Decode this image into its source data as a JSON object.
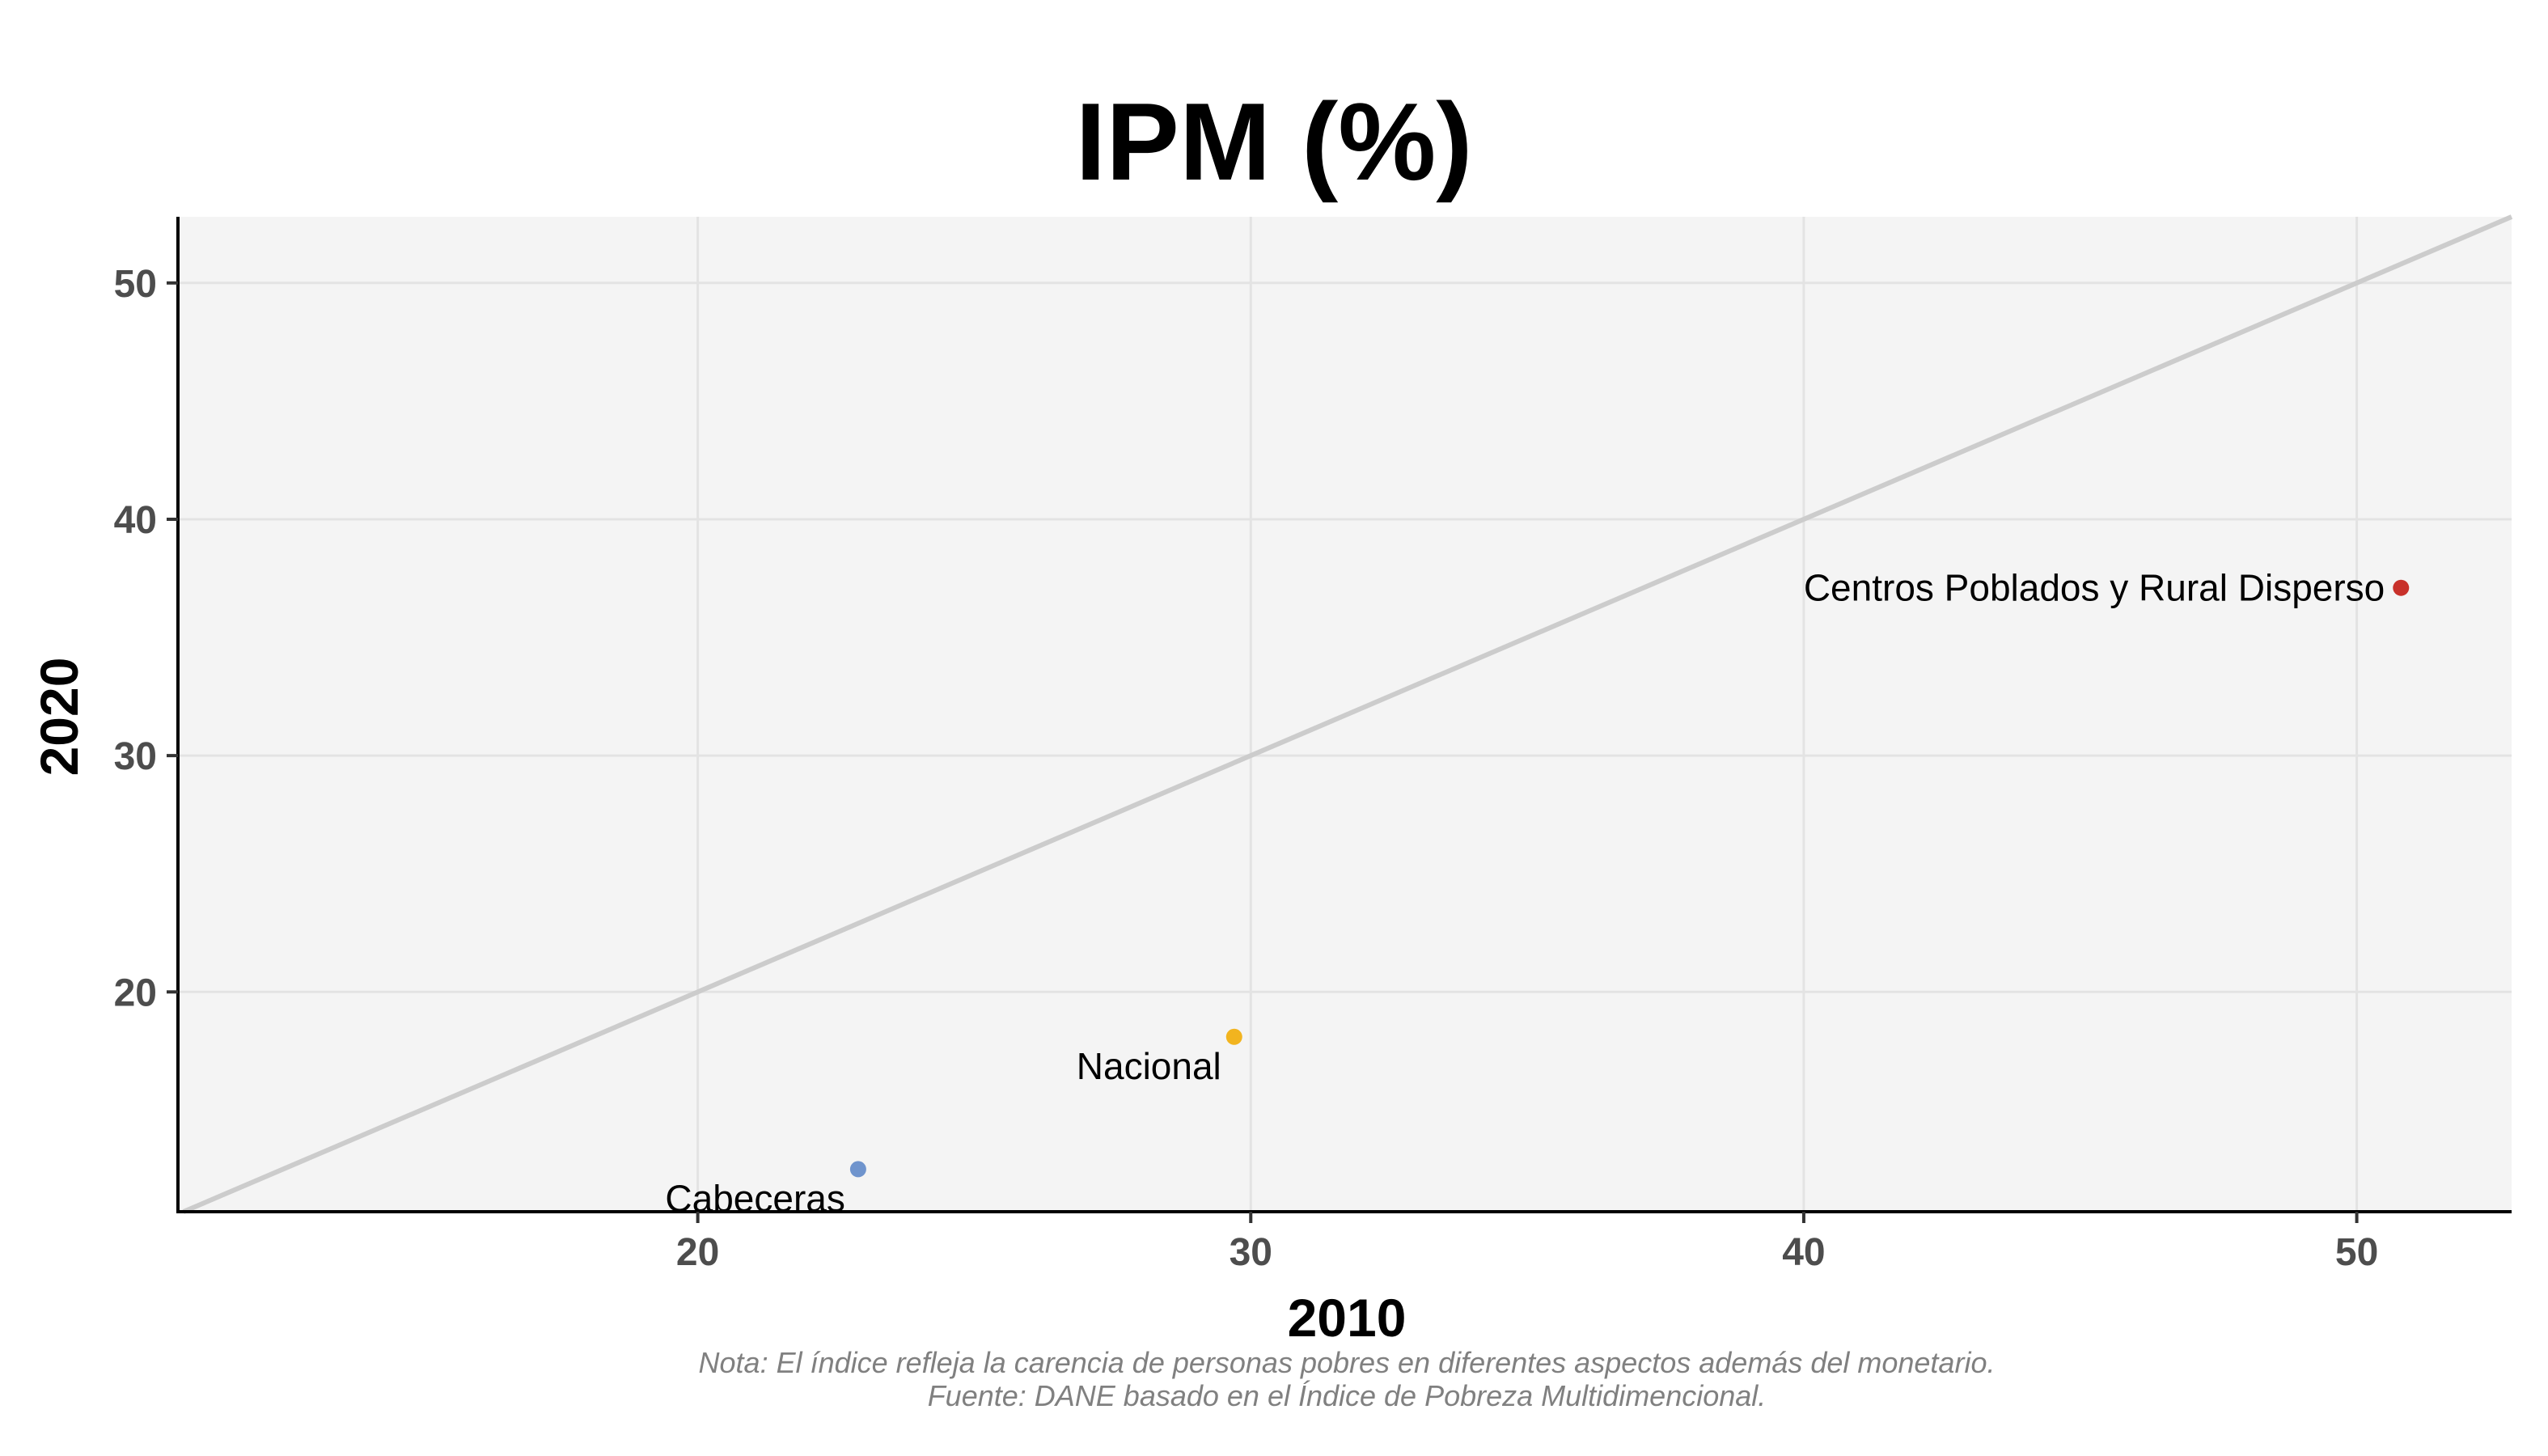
{
  "chart_data": {
    "type": "scatter",
    "title": "IPM (%)",
    "xlabel": "2010",
    "ylabel": "2020",
    "xlim": [
      10.6,
      52.8
    ],
    "ylim": [
      10.7,
      52.8
    ],
    "x_ticks": [
      20,
      30,
      40,
      50
    ],
    "y_ticks": [
      20,
      30,
      40,
      50
    ],
    "grid": true,
    "background": "#f4f4f4",
    "reference_line": {
      "type": "identity",
      "color": "#cccccc"
    },
    "points": [
      {
        "label": "Cabeceras",
        "x": 22.9,
        "y": 12.5,
        "color": "#6f94cd"
      },
      {
        "label": "Nacional",
        "x": 29.7,
        "y": 18.1,
        "color": "#f2b41f"
      },
      {
        "label": "Centros Poblados y Rural Disperso",
        "x": 50.8,
        "y": 37.1,
        "color": "#c8312a"
      }
    ]
  },
  "caption": {
    "note": "Nota: El índice refleja la carencia de personas pobres en diferentes aspectos además del monetario.",
    "source": "Fuente: DANE basado en el Índice de Pobreza Multidimencional."
  }
}
